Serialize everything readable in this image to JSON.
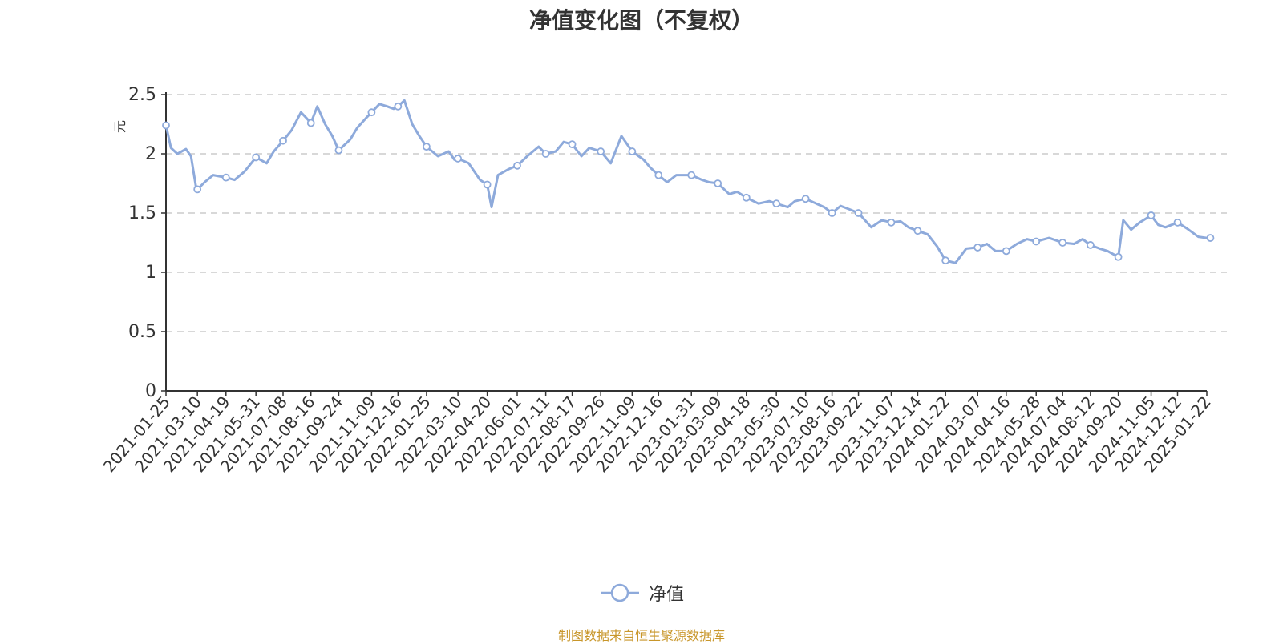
{
  "chart_data": {
    "type": "line",
    "title": "净值变化图（不复权）",
    "ylabel": "元",
    "ylim": [
      0,
      2.5
    ],
    "yticks": [
      0,
      0.5,
      1,
      1.5,
      2,
      2.5
    ],
    "ytick_labels": [
      "0",
      "0.5",
      "1",
      "1.5",
      "2",
      "2.5"
    ],
    "grid": true,
    "legend_position": "bottom-center",
    "xtick_labels": [
      "2021-01-25",
      "2021-03-10",
      "2021-04-19",
      "2021-05-31",
      "2021-07-08",
      "2021-08-16",
      "2021-09-24",
      "2021-11-09",
      "2021-12-16",
      "2022-01-25",
      "2022-03-10",
      "2022-04-20",
      "2022-06-01",
      "2022-07-11",
      "2022-08-17",
      "2022-09-26",
      "2022-11-09",
      "2022-12-16",
      "2023-01-31",
      "2023-03-09",
      "2023-04-18",
      "2023-05-30",
      "2023-07-10",
      "2023-08-16",
      "2023-09-22",
      "2023-11-07",
      "2023-12-14",
      "2024-01-22",
      "2024-03-07",
      "2024-04-16",
      "2024-05-28",
      "2024-07-04",
      "2024-08-12",
      "2024-09-20",
      "2024-11-05",
      "2024-12-12",
      "2025-01-22"
    ],
    "series": [
      {
        "name": "净值",
        "color": "#8eaadb",
        "x": [
          "2021-01-25",
          "2021-02-01",
          "2021-02-10",
          "2021-02-22",
          "2021-03-01",
          "2021-03-08",
          "2021-03-10",
          "2021-03-20",
          "2021-04-01",
          "2021-04-19",
          "2021-05-01",
          "2021-05-15",
          "2021-05-31",
          "2021-06-15",
          "2021-06-25",
          "2021-07-08",
          "2021-07-20",
          "2021-08-02",
          "2021-08-10",
          "2021-08-16",
          "2021-08-25",
          "2021-09-05",
          "2021-09-15",
          "2021-09-24",
          "2021-10-10",
          "2021-10-20",
          "2021-11-01",
          "2021-11-09",
          "2021-11-20",
          "2021-12-01",
          "2021-12-10",
          "2021-12-16",
          "2021-12-25",
          "2022-01-05",
          "2022-01-15",
          "2022-01-25",
          "2022-02-10",
          "2022-02-25",
          "2022-03-05",
          "2022-03-10",
          "2022-03-25",
          "2022-04-10",
          "2022-04-20",
          "2022-04-26",
          "2022-05-05",
          "2022-05-20",
          "2022-06-01",
          "2022-06-15",
          "2022-07-01",
          "2022-07-11",
          "2022-07-25",
          "2022-08-05",
          "2022-08-17",
          "2022-08-30",
          "2022-09-10",
          "2022-09-26",
          "2022-10-10",
          "2022-10-25",
          "2022-11-09",
          "2022-11-25",
          "2022-12-05",
          "2022-12-16",
          "2022-12-28",
          "2023-01-10",
          "2023-01-31",
          "2023-02-15",
          "2023-02-25",
          "2023-03-09",
          "2023-03-25",
          "2023-04-05",
          "2023-04-18",
          "2023-05-05",
          "2023-05-20",
          "2023-05-30",
          "2023-06-15",
          "2023-06-25",
          "2023-07-10",
          "2023-07-25",
          "2023-08-05",
          "2023-08-16",
          "2023-08-28",
          "2023-09-10",
          "2023-09-22",
          "2023-10-10",
          "2023-10-25",
          "2023-11-07",
          "2023-11-20",
          "2023-12-01",
          "2023-12-14",
          "2023-12-28",
          "2024-01-10",
          "2024-01-22",
          "2024-02-05",
          "2024-02-20",
          "2024-03-07",
          "2024-03-20",
          "2024-04-01",
          "2024-04-16",
          "2024-05-01",
          "2024-05-15",
          "2024-05-28",
          "2024-06-15",
          "2024-07-04",
          "2024-07-20",
          "2024-08-01",
          "2024-08-12",
          "2024-08-25",
          "2024-09-05",
          "2024-09-20",
          "2024-09-27",
          "2024-10-08",
          "2024-10-20",
          "2024-11-05",
          "2024-11-15",
          "2024-11-25",
          "2024-12-12",
          "2024-12-25",
          "2025-01-10",
          "2025-01-22",
          "2025-01-27"
        ],
        "values": [
          2.24,
          2.05,
          2.0,
          2.04,
          1.98,
          1.72,
          1.7,
          1.76,
          1.82,
          1.8,
          1.78,
          1.85,
          1.97,
          1.92,
          2.02,
          2.11,
          2.2,
          2.35,
          2.3,
          2.26,
          2.4,
          2.25,
          2.15,
          2.03,
          2.12,
          2.22,
          2.3,
          2.35,
          2.42,
          2.4,
          2.38,
          2.4,
          2.45,
          2.25,
          2.15,
          2.06,
          1.98,
          2.02,
          1.95,
          1.96,
          1.92,
          1.78,
          1.74,
          1.55,
          1.82,
          1.87,
          1.9,
          1.98,
          2.06,
          2.0,
          2.02,
          2.1,
          2.08,
          1.98,
          2.05,
          2.02,
          1.92,
          2.15,
          2.02,
          1.95,
          1.88,
          1.82,
          1.76,
          1.82,
          1.82,
          1.78,
          1.76,
          1.75,
          1.66,
          1.68,
          1.63,
          1.58,
          1.6,
          1.58,
          1.55,
          1.6,
          1.62,
          1.58,
          1.55,
          1.5,
          1.56,
          1.53,
          1.5,
          1.38,
          1.44,
          1.42,
          1.43,
          1.38,
          1.35,
          1.32,
          1.22,
          1.1,
          1.08,
          1.2,
          1.21,
          1.24,
          1.18,
          1.18,
          1.24,
          1.28,
          1.26,
          1.29,
          1.25,
          1.24,
          1.28,
          1.23,
          1.2,
          1.18,
          1.13,
          1.44,
          1.36,
          1.42,
          1.48,
          1.4,
          1.38,
          1.42,
          1.37,
          1.3,
          1.29,
          1.29
        ],
        "marker_dates": [
          "2021-01-25",
          "2021-03-10",
          "2021-04-19",
          "2021-05-31",
          "2021-07-08",
          "2021-08-16",
          "2021-09-24",
          "2021-11-09",
          "2021-12-16",
          "2022-01-25",
          "2022-03-10",
          "2022-04-20",
          "2022-06-01",
          "2022-07-11",
          "2022-08-17",
          "2022-09-26",
          "2022-11-09",
          "2022-12-16",
          "2023-01-31",
          "2023-03-09",
          "2023-04-18",
          "2023-05-30",
          "2023-07-10",
          "2023-08-16",
          "2023-09-22",
          "2023-11-07",
          "2023-12-14",
          "2024-01-22",
          "2024-03-07",
          "2024-04-16",
          "2024-05-28",
          "2024-07-04",
          "2024-08-12",
          "2024-09-20",
          "2024-11-05",
          "2024-12-12",
          "2025-01-27"
        ]
      }
    ]
  },
  "legend": {
    "label": "净值"
  },
  "source_note": "制图数据来自恒生聚源数据库",
  "colors": {
    "line": "#8eaadb",
    "axis": "#333333",
    "grid": "#cccccc",
    "ylabel": "#e03030",
    "source": "#c8962a"
  }
}
